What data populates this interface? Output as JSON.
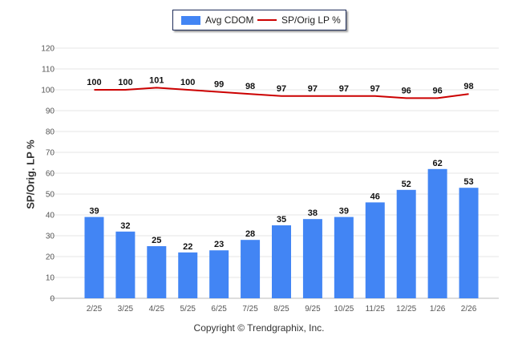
{
  "chart_data": {
    "type": "bar",
    "title": "",
    "categories": [
      "2/25",
      "3/25",
      "4/25",
      "5/25",
      "6/25",
      "7/25",
      "8/25",
      "9/25",
      "10/25",
      "11/25",
      "12/25",
      "1/26",
      "2/26"
    ],
    "series": [
      {
        "name": "Avg CDOM",
        "type": "bar",
        "color": "#4285f4",
        "values": [
          39,
          32,
          25,
          22,
          23,
          28,
          35,
          38,
          39,
          46,
          52,
          62,
          53
        ]
      },
      {
        "name": "SP/Orig LP %",
        "type": "line",
        "color": "#cc0000",
        "values": [
          100,
          100,
          101,
          100,
          99,
          98,
          97,
          97,
          97,
          97,
          96,
          96,
          98
        ]
      }
    ],
    "ylabel": "SP/Orig. LP %",
    "xlabel": "",
    "ylim": [
      0,
      120
    ],
    "yticks": [
      0,
      10,
      20,
      30,
      40,
      50,
      60,
      70,
      80,
      90,
      100,
      110,
      120
    ],
    "grid": true,
    "legend": "top-center"
  },
  "footer": {
    "copyright": "Copyright © Trendgraphix, Inc."
  }
}
